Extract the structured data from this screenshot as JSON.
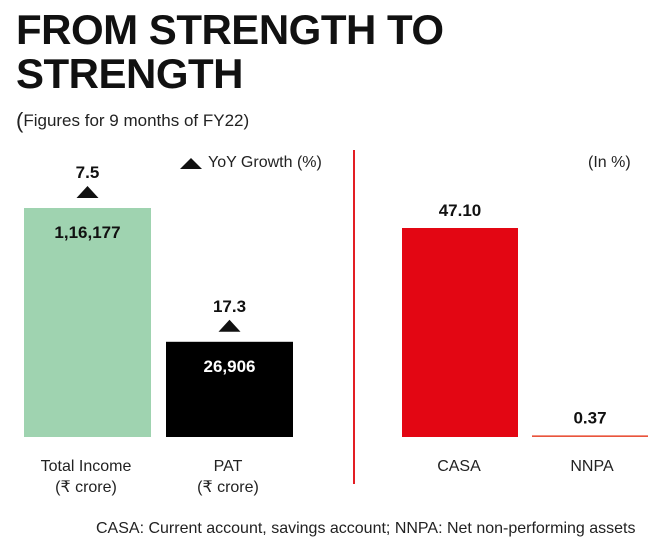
{
  "title_line1": "FROM STRENGTH TO",
  "title_line2": "STRENGTH",
  "subtitle_paren": "(",
  "subtitle": "Figures for 9 months of FY22)",
  "legend_label": "YoY Growth (%)",
  "unit_label": "(In %)",
  "footnote": "CASA: Current account, savings account; NNPA: Net non-performing assets",
  "colors": {
    "total_income": "#9fd3b0",
    "pat": "#000000",
    "casa": "#e30613",
    "nnpa": "#e9543c",
    "divider": "#e31e24"
  },
  "categories": {
    "total_income": [
      "Total Income",
      "(₹ crore)"
    ],
    "pat": [
      "PAT",
      "(₹ crore)"
    ],
    "casa": [
      "CASA"
    ],
    "nnpa": [
      "NNPA"
    ]
  },
  "chart_data": [
    {
      "type": "bar",
      "title": "",
      "categories": [
        "Total Income (₹ crore)",
        "PAT (₹ crore)"
      ],
      "series": [
        {
          "name": "",
          "values": [
            116177,
            26906
          ],
          "value_labels": [
            "1,16,177",
            "26,906"
          ]
        },
        {
          "name": "YoY Growth (%)",
          "values": [
            7.5,
            17.3
          ]
        }
      ],
      "xlabel": "",
      "ylabel": ""
    },
    {
      "type": "bar",
      "title": "",
      "categories": [
        "CASA",
        "NNPA"
      ],
      "values": [
        47.1,
        0.37
      ],
      "value_labels": [
        "47.10",
        "0.37"
      ],
      "unit": "(In %)",
      "xlabel": "",
      "ylabel": ""
    }
  ]
}
